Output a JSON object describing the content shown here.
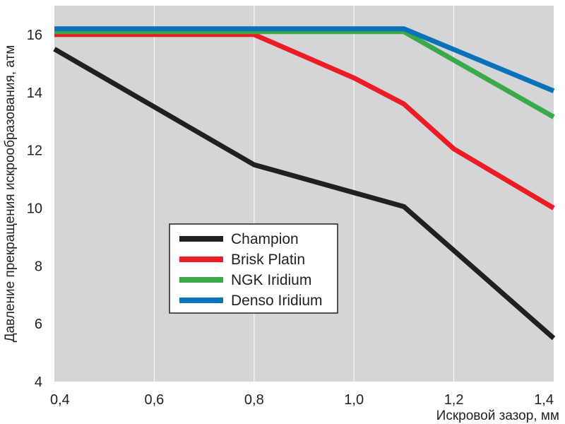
{
  "chart_data": {
    "type": "line",
    "title": "",
    "xlabel": "Искровой зазор, мм",
    "ylabel": "Давление прекращения искрообразования, атм",
    "xlim": [
      0.4,
      1.4
    ],
    "ylim": [
      4,
      17
    ],
    "x_ticks": [
      "0,4",
      "0,6",
      "0,8",
      "1,0",
      "1,2",
      "1,4"
    ],
    "y_ticks": [
      "4",
      "6",
      "8",
      "10",
      "12",
      "14",
      "16"
    ],
    "grid": "vertical",
    "background": "#d4d5d6",
    "legend_position": "center-left",
    "series": [
      {
        "name": "Champion",
        "color": "#231f20",
        "points": [
          [
            0.4,
            15.5
          ],
          [
            0.8,
            11.5
          ],
          [
            1.1,
            10.05
          ],
          [
            1.4,
            5.5
          ]
        ]
      },
      {
        "name": "Brisk Platin",
        "color": "#ed1c24",
        "points": [
          [
            0.4,
            16.0
          ],
          [
            0.8,
            16.0
          ],
          [
            1.0,
            14.5
          ],
          [
            1.1,
            13.6
          ],
          [
            1.2,
            12.05
          ],
          [
            1.4,
            10.0
          ]
        ]
      },
      {
        "name": "NGK Iridium",
        "color": "#3aaa48",
        "points": [
          [
            0.4,
            16.1
          ],
          [
            1.1,
            16.1
          ],
          [
            1.4,
            13.15
          ]
        ]
      },
      {
        "name": "Denso Iridium",
        "color": "#0b72b9",
        "points": [
          [
            0.4,
            16.2
          ],
          [
            1.1,
            16.2
          ],
          [
            1.4,
            14.05
          ]
        ]
      }
    ]
  }
}
